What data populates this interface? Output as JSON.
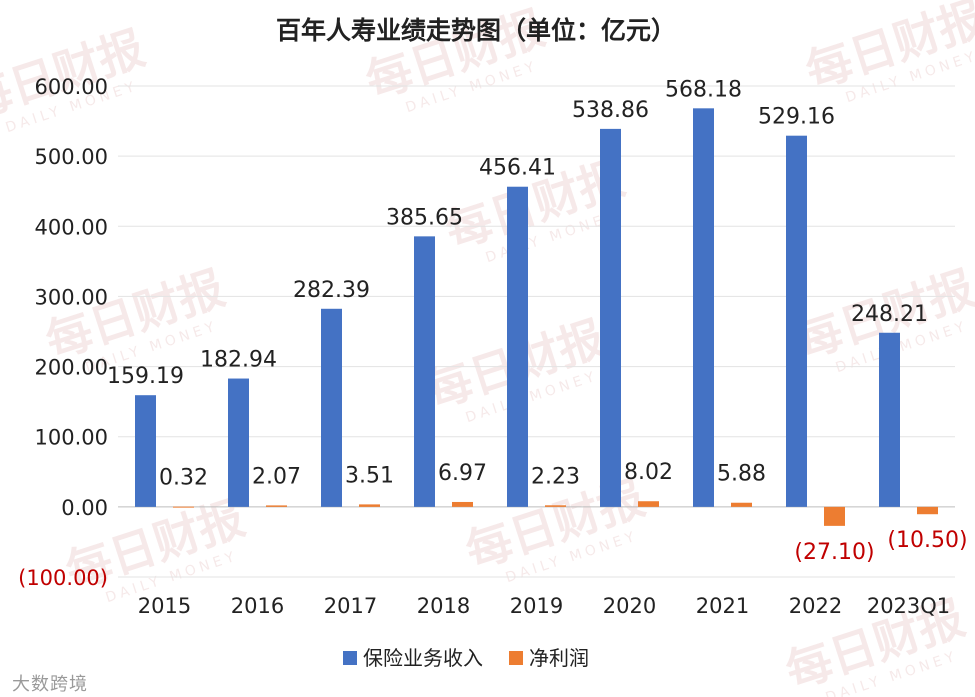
{
  "chart_data": {
    "type": "bar",
    "title": "百年人寿业绩走势图（单位：亿元）",
    "categories": [
      "2015",
      "2016",
      "2017",
      "2018",
      "2019",
      "2020",
      "2021",
      "2022",
      "2023Q1"
    ],
    "series": [
      {
        "name": "保险业务收入",
        "color": "#4472C4",
        "values": [
          159.19,
          182.94,
          282.39,
          385.65,
          456.41,
          538.86,
          568.18,
          529.16,
          248.21
        ],
        "labels": [
          "159.19",
          "182.94",
          "282.39",
          "385.65",
          "456.41",
          "538.86",
          "568.18",
          "529.16",
          "248.21"
        ]
      },
      {
        "name": "净利润",
        "color": "#ED7D31",
        "values": [
          0.32,
          2.07,
          3.51,
          6.97,
          2.23,
          8.02,
          5.88,
          -27.1,
          -10.5
        ],
        "labels": [
          "0.32",
          "2.07",
          "3.51",
          "6.97",
          "2.23",
          "8.02",
          "5.88",
          "(27.10)",
          "(10.50)"
        ]
      }
    ],
    "yticks": [
      "600.00",
      "500.00",
      "400.00",
      "300.00",
      "200.00",
      "100.00",
      "0.00",
      "(100.00)"
    ],
    "ylim": [
      -100,
      600
    ],
    "grid": true,
    "legend_position": "bottom",
    "negative_label_color": "#C00000"
  },
  "watermark": {
    "brand": "每日财报",
    "sub": "DAILY MONEY",
    "source": "大数跨境"
  }
}
